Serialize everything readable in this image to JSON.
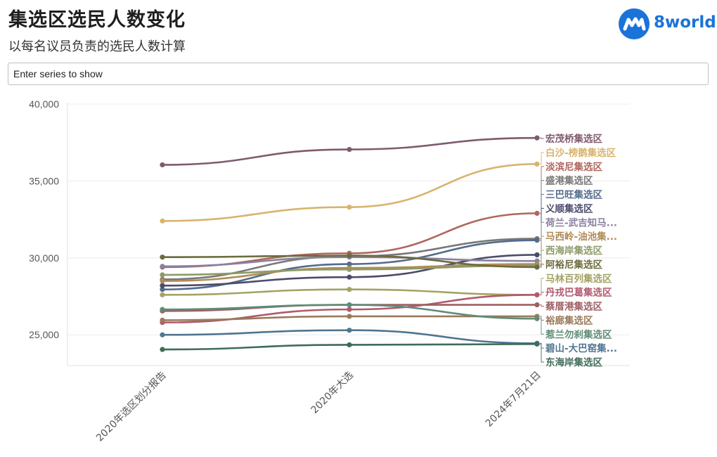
{
  "header": {
    "title": "集选区选民人数变化",
    "subtitle": "以每名议员负责的选民人数计算"
  },
  "logo": {
    "text": "8world",
    "icon": "8world-logo-icon",
    "color": "#1a73d9"
  },
  "search": {
    "placeholder": "Enter series to show",
    "value": ""
  },
  "chart_data": {
    "type": "line",
    "categories": [
      "2020年选区划分报告",
      "2020年大选",
      "2024年7月21日"
    ],
    "ylim": [
      23000,
      40000
    ],
    "yticks": [
      25000,
      30000,
      35000,
      40000
    ],
    "ytick_labels": [
      "25,000",
      "30,000",
      "35,000",
      "40,000"
    ],
    "grid": true,
    "legend": "end-of-line labels",
    "series": [
      {
        "name": "宏茂桥集选区",
        "values": [
          36050,
          37050,
          37800
        ],
        "color": "#7f5a6e"
      },
      {
        "name": "白沙-榜鹅集选区",
        "values": [
          32400,
          33300,
          36100
        ],
        "color": "#d9b36e"
      },
      {
        "name": "淡滨尼集选区",
        "values": [
          29400,
          30300,
          32900
        ],
        "color": "#b0665d"
      },
      {
        "name": "盛港集选区",
        "values": [
          28600,
          30100,
          31250
        ],
        "color": "#787878"
      },
      {
        "name": "三巴旺集选区",
        "values": [
          27950,
          29600,
          31150
        ],
        "color": "#536b8c"
      },
      {
        "name": "义顺集选区",
        "values": [
          28200,
          28750,
          30200
        ],
        "color": "#4b4b6d"
      },
      {
        "name": "荷兰-武吉知马...",
        "values": [
          29450,
          30050,
          29800
        ],
        "color": "#8a80a0"
      },
      {
        "name": "马西岭-油池集...",
        "values": [
          28500,
          29350,
          29600
        ],
        "color": "#b08c57"
      },
      {
        "name": "西海岸集选区",
        "values": [
          28900,
          29250,
          29500
        ],
        "color": "#8e9a69"
      },
      {
        "name": "阿裕尼集选区",
        "values": [
          30050,
          30150,
          29400
        ],
        "color": "#6b6b3f"
      },
      {
        "name": "马林百列集选区",
        "values": [
          27600,
          27950,
          27600
        ],
        "color": "#a3a364"
      },
      {
        "name": "丹戎巴葛集选区",
        "values": [
          25800,
          26650,
          27600
        ],
        "color": "#b05a6e"
      },
      {
        "name": "蔡厝港集选区",
        "values": [
          26550,
          26950,
          26950
        ],
        "color": "#9e5f63"
      },
      {
        "name": "裕廊集选区",
        "values": [
          25950,
          26200,
          26200
        ],
        "color": "#9a7a5a"
      },
      {
        "name": "惹兰勿刹集选区",
        "values": [
          26650,
          26950,
          26050
        ],
        "color": "#5e8c76"
      },
      {
        "name": "碧山-大巴窑集...",
        "values": [
          25000,
          25300,
          24450
        ],
        "color": "#4f7591"
      },
      {
        "name": "东海岸集选区",
        "values": [
          24050,
          24350,
          24400
        ],
        "color": "#3f6b5a"
      }
    ]
  }
}
